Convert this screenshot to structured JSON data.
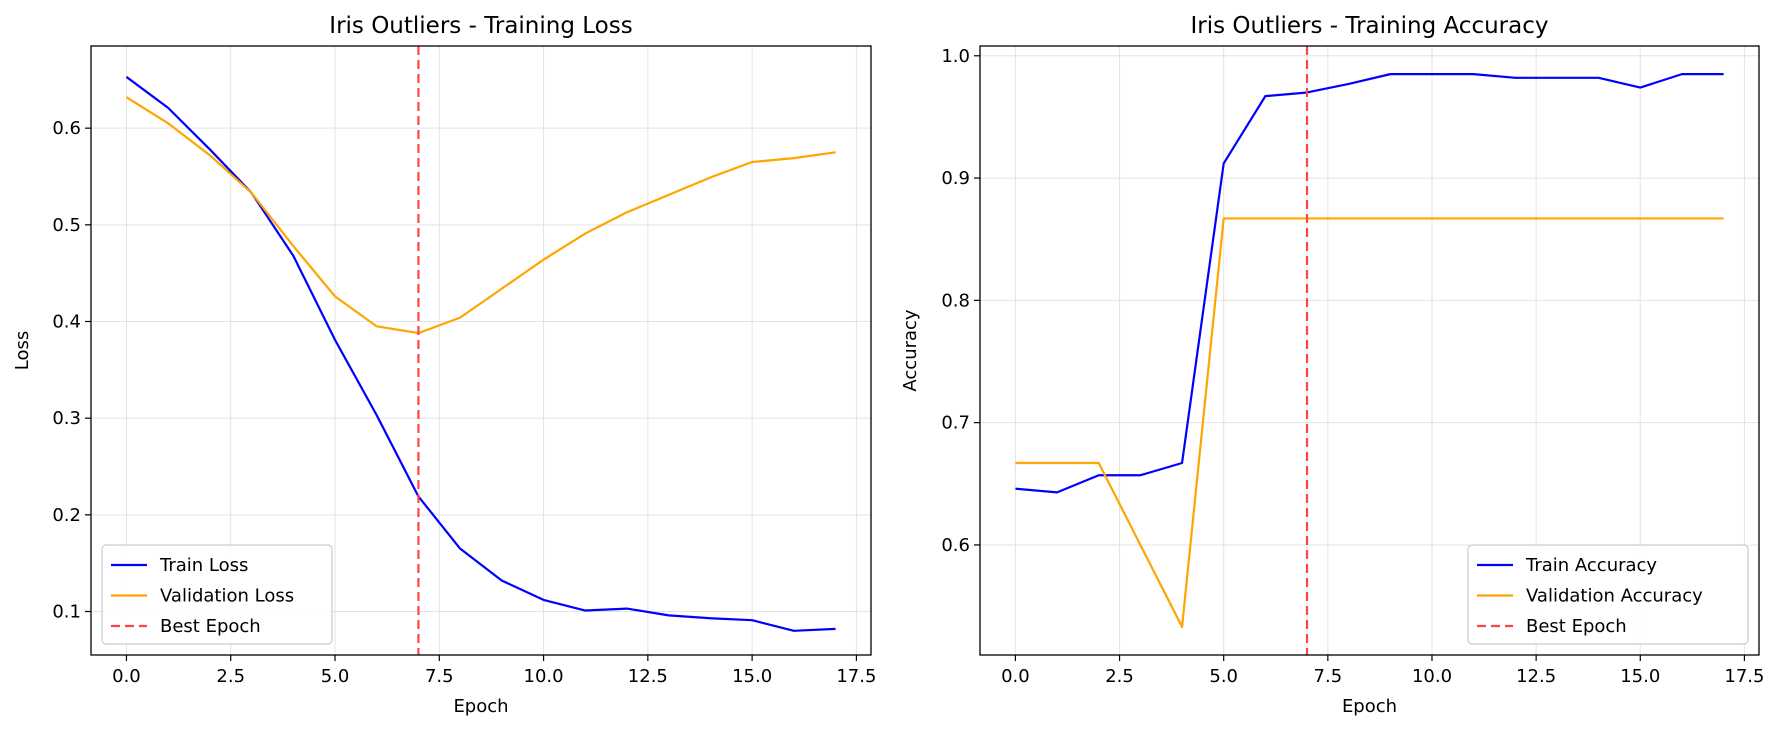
{
  "chart_data": [
    {
      "type": "line",
      "title": "Iris Outliers - Training Loss",
      "xlabel": "Epoch",
      "ylabel": "Loss",
      "xlim": [
        -0.85,
        17.85
      ],
      "ylim": [
        0.055,
        0.685
      ],
      "xticks": [
        0,
        2.5,
        5,
        7.5,
        10,
        12.5,
        15,
        17.5
      ],
      "xtick_labels": [
        "0.0",
        "2.5",
        "5.0",
        "7.5",
        "10.0",
        "12.5",
        "15.0",
        "17.5"
      ],
      "yticks": [
        0.1,
        0.2,
        0.3,
        0.4,
        0.5,
        0.6
      ],
      "ytick_labels": [
        "0.1",
        "0.2",
        "0.3",
        "0.4",
        "0.5",
        "0.6"
      ],
      "grid": true,
      "legend_position": "lower-left",
      "x": [
        0,
        1,
        2,
        3,
        4,
        5,
        6,
        7,
        8,
        9,
        10,
        11,
        12,
        13,
        14,
        15,
        16,
        17
      ],
      "series": [
        {
          "name": "Train Loss",
          "color": "#0000ff",
          "values": [
            0.653,
            0.621,
            0.578,
            0.533,
            0.468,
            0.381,
            0.303,
            0.219,
            0.165,
            0.132,
            0.112,
            0.101,
            0.103,
            0.096,
            0.093,
            0.091,
            0.08,
            0.082
          ]
        },
        {
          "name": "Validation Loss",
          "color": "#ffa500",
          "values": [
            0.632,
            0.605,
            0.572,
            0.533,
            0.478,
            0.426,
            0.395,
            0.388,
            0.404,
            0.434,
            0.464,
            0.491,
            0.513,
            0.531,
            0.549,
            0.565,
            0.569,
            0.575
          ]
        }
      ],
      "vline": {
        "name": "Best Epoch",
        "x": 7,
        "color": "#ff4444"
      }
    },
    {
      "type": "line",
      "title": "Iris Outliers - Training Accuracy",
      "xlabel": "Epoch",
      "ylabel": "Accuracy",
      "xlim": [
        -0.85,
        17.85
      ],
      "ylim": [
        0.51,
        1.008
      ],
      "xticks": [
        0,
        2.5,
        5,
        7.5,
        10,
        12.5,
        15,
        17.5
      ],
      "xtick_labels": [
        "0.0",
        "2.5",
        "5.0",
        "7.5",
        "10.0",
        "12.5",
        "15.0",
        "17.5"
      ],
      "yticks": [
        0.6,
        0.7,
        0.8,
        0.9,
        1.0
      ],
      "ytick_labels": [
        "0.6",
        "0.7",
        "0.8",
        "0.9",
        "1.0"
      ],
      "grid": true,
      "legend_position": "lower-right",
      "x": [
        0,
        1,
        2,
        3,
        4,
        5,
        6,
        7,
        8,
        9,
        10,
        11,
        12,
        13,
        14,
        15,
        16,
        17
      ],
      "series": [
        {
          "name": "Train Accuracy",
          "color": "#0000ff",
          "values": [
            0.646,
            0.643,
            0.657,
            0.657,
            0.667,
            0.912,
            0.967,
            0.97,
            0.977,
            0.985,
            0.985,
            0.985,
            0.982,
            0.982,
            0.982,
            0.974,
            0.985,
            0.985
          ]
        },
        {
          "name": "Validation Accuracy",
          "color": "#ffa500",
          "values": [
            0.667,
            0.667,
            0.667,
            0.6,
            0.533,
            0.867,
            0.867,
            0.867,
            0.867,
            0.867,
            0.867,
            0.867,
            0.867,
            0.867,
            0.867,
            0.867,
            0.867,
            0.867
          ]
        }
      ],
      "vline": {
        "name": "Best Epoch",
        "x": 7,
        "color": "#ff4444"
      }
    }
  ]
}
